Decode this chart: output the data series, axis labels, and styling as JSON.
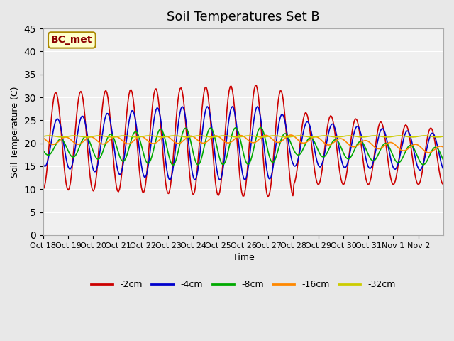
{
  "title": "Soil Temperatures Set B",
  "xlabel": "Time",
  "ylabel": "Soil Temperature (C)",
  "ylim": [
    0,
    45
  ],
  "yticks": [
    0,
    5,
    10,
    15,
    20,
    25,
    30,
    35,
    40,
    45
  ],
  "xtick_labels": [
    "Oct 18",
    "Oct 19",
    "Oct 20",
    "Oct 21",
    "Oct 22",
    "Oct 23",
    "Oct 24",
    "Oct 25",
    "Oct 26",
    "Oct 27",
    "Oct 28",
    "Oct 29",
    "Oct 30",
    "Oct 31",
    "Nov 1",
    "Nov 2"
  ],
  "legend_labels": [
    "-2cm",
    "-4cm",
    "-8cm",
    "-16cm",
    "-32cm"
  ],
  "annotation_text": "BC_met",
  "background_color": "#e8e8e8",
  "plot_bg_color": "#f0f0f0",
  "series_colors": [
    "#cc0000",
    "#0000cc",
    "#00aa00",
    "#ff8800",
    "#cccc00"
  ]
}
